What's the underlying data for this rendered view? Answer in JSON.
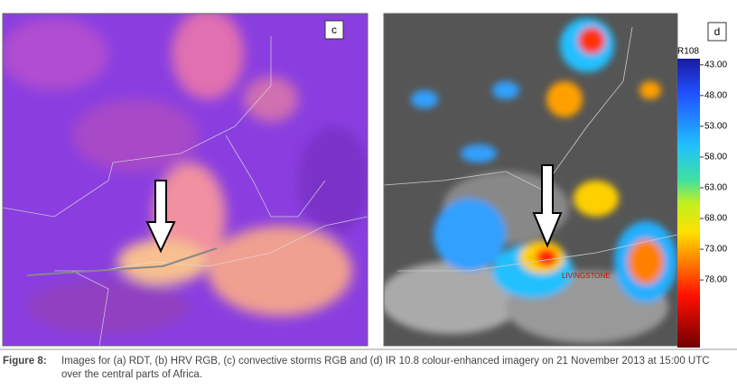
{
  "panels": [
    {
      "label": "c"
    },
    {
      "label": "d",
      "map_labels": [
        "LIVINGSTONE"
      ],
      "colorbar": {
        "title": "R108",
        "range": [
          42,
          89
        ],
        "ticks": [
          {
            "value": 43,
            "label": "43.00"
          },
          {
            "value": 48,
            "label": "48.00"
          },
          {
            "value": 53,
            "label": "53.00"
          },
          {
            "value": 58,
            "label": "58.00"
          },
          {
            "value": 63,
            "label": "63.00"
          },
          {
            "value": 68,
            "label": "68.00"
          },
          {
            "value": 73,
            "label": "73.00"
          },
          {
            "value": 78,
            "label": "78.00"
          }
        ]
      }
    }
  ],
  "caption": {
    "number": "Figure 8:",
    "text": "Images for (a) RDT, (b) HRV RGB, (c) convective storms RGB and (d) IR 10.8 colour-enhanced imagery on 21 November 2013 at 15:00 UTC over the central parts of Africa."
  }
}
